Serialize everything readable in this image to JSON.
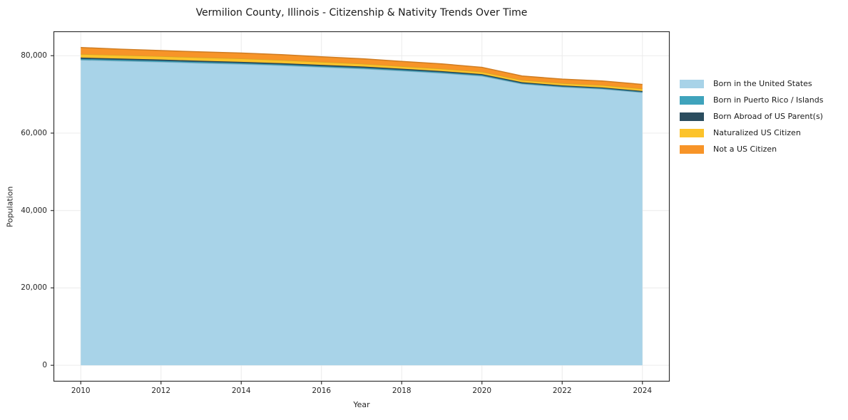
{
  "chart_data": {
    "type": "area",
    "stacked": true,
    "title": "Vermilion County, Illinois - Citizenship & Nativity Trends Over Time",
    "xlabel": "Year",
    "ylabel": "Population",
    "x": [
      2010,
      2011,
      2012,
      2013,
      2014,
      2015,
      2016,
      2017,
      2018,
      2019,
      2020,
      2021,
      2022,
      2023,
      2024
    ],
    "series": [
      {
        "name": "Born in the United States",
        "color": "#a8d3e8",
        "values": [
          78900,
          78650,
          78400,
          78100,
          77850,
          77500,
          77050,
          76650,
          76100,
          75500,
          74750,
          72700,
          71900,
          71400,
          70500
        ]
      },
      {
        "name": "Born in Puerto Rico / Islands",
        "color": "#3fa3bc",
        "values": [
          300,
          300,
          290,
          280,
          270,
          260,
          260,
          250,
          250,
          240,
          230,
          200,
          190,
          180,
          170
        ]
      },
      {
        "name": "Born Abroad of US Parent(s)",
        "color": "#2b4d5f",
        "values": [
          320,
          310,
          310,
          300,
          300,
          300,
          330,
          320,
          300,
          290,
          260,
          240,
          230,
          220,
          210
        ]
      },
      {
        "name": "Naturalized US Citizen",
        "color": "#fcc32b",
        "values": [
          900,
          880,
          860,
          850,
          840,
          810,
          760,
          700,
          620,
          610,
          600,
          560,
          580,
          590,
          600
        ]
      },
      {
        "name": "Not a US Citizen",
        "color": "#f79428",
        "values": [
          1700,
          1550,
          1480,
          1450,
          1420,
          1400,
          1330,
          1300,
          1260,
          1240,
          1160,
          1050,
          1050,
          1080,
          1100
        ]
      }
    ],
    "xticks": [
      2010,
      2012,
      2014,
      2016,
      2018,
      2020,
      2022,
      2024
    ],
    "xtick_labels": [
      "2010",
      "2012",
      "2014",
      "2016",
      "2018",
      "2020",
      "2022",
      "2024"
    ],
    "yticks": [
      0,
      20000,
      40000,
      60000,
      80000
    ],
    "ytick_labels": [
      "0",
      "20,000",
      "40,000",
      "60,000",
      "80,000"
    ],
    "xlim": [
      2009.32,
      2024.68
    ],
    "ylim": [
      -4200,
      86300
    ],
    "grid": true,
    "legend_position": "right",
    "background": "#ffffff",
    "grid_color": "#ececec",
    "spine_color": "#333333",
    "text_color": "#262626"
  }
}
